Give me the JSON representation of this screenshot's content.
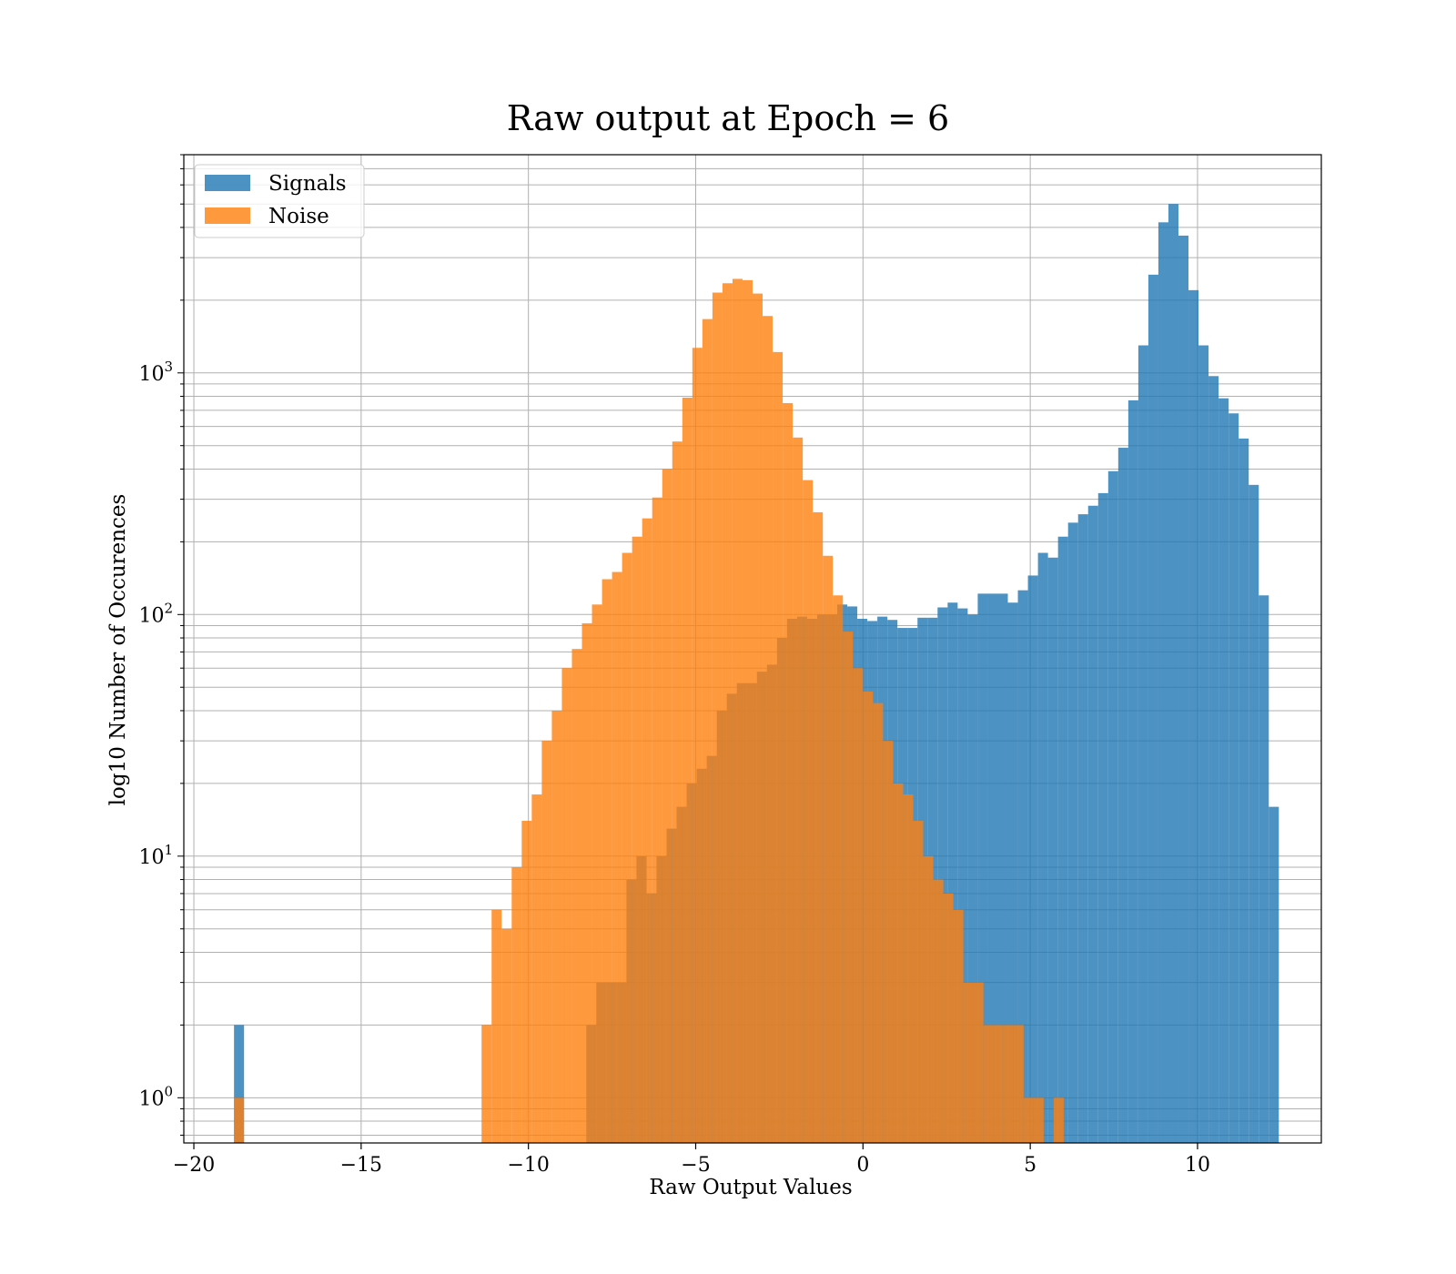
{
  "chart_data": {
    "type": "bar",
    "subtype": "overlaid-histogram",
    "title": "Raw output at Epoch = 6",
    "xlabel": "Raw Output Values",
    "ylabel": "log10 Number of Occurences",
    "xlim": [
      -20.3,
      13.7
    ],
    "ylim": [
      0.65,
      8000
    ],
    "yscale": "log",
    "grid": true,
    "legend_position": "top-left",
    "x_ticks": [
      {
        "value": -20,
        "label": "−20"
      },
      {
        "value": -15,
        "label": "−15"
      },
      {
        "value": -10,
        "label": "−10"
      },
      {
        "value": -5,
        "label": "−5"
      },
      {
        "value": 0,
        "label": "0"
      },
      {
        "value": 5,
        "label": "5"
      },
      {
        "value": 10,
        "label": "10"
      }
    ],
    "y_ticks": [
      {
        "value": 1,
        "base": "10",
        "exp": "0"
      },
      {
        "value": 10,
        "base": "10",
        "exp": "1"
      },
      {
        "value": 100,
        "base": "10",
        "exp": "2"
      },
      {
        "value": 1000,
        "base": "10",
        "exp": "3"
      }
    ],
    "series": [
      {
        "name": "Signals",
        "color": "#1f77b4",
        "bins": [
          [
            -18.8,
            -18.5,
            2
          ],
          [
            -8.27,
            -7.97,
            2
          ],
          [
            -7.97,
            -7.67,
            3
          ],
          [
            -7.67,
            -7.37,
            3
          ],
          [
            -7.37,
            -7.07,
            3
          ],
          [
            -7.07,
            -6.77,
            8
          ],
          [
            -6.77,
            -6.47,
            10
          ],
          [
            -6.47,
            -6.17,
            7
          ],
          [
            -6.17,
            -5.87,
            10
          ],
          [
            -5.87,
            -5.57,
            13
          ],
          [
            -5.57,
            -5.27,
            16
          ],
          [
            -5.27,
            -4.97,
            20
          ],
          [
            -4.97,
            -4.67,
            23
          ],
          [
            -4.67,
            -4.37,
            26
          ],
          [
            -4.37,
            -4.07,
            40
          ],
          [
            -4.07,
            -3.77,
            47
          ],
          [
            -3.77,
            -3.47,
            52
          ],
          [
            -3.47,
            -3.17,
            52
          ],
          [
            -3.17,
            -2.87,
            58
          ],
          [
            -2.87,
            -2.57,
            62
          ],
          [
            -2.57,
            -2.27,
            80
          ],
          [
            -2.27,
            -1.97,
            96
          ],
          [
            -1.97,
            -1.67,
            98
          ],
          [
            -1.67,
            -1.37,
            96
          ],
          [
            -1.37,
            -1.07,
            100
          ],
          [
            -1.07,
            -0.77,
            100
          ],
          [
            -0.77,
            -0.47,
            110
          ],
          [
            -0.47,
            -0.17,
            108
          ],
          [
            -0.17,
            0.13,
            96
          ],
          [
            0.13,
            0.43,
            94
          ],
          [
            0.43,
            0.73,
            98
          ],
          [
            0.73,
            1.03,
            95
          ],
          [
            1.03,
            1.33,
            88
          ],
          [
            1.33,
            1.63,
            88
          ],
          [
            1.63,
            1.93,
            97
          ],
          [
            1.93,
            2.23,
            97
          ],
          [
            2.23,
            2.53,
            107
          ],
          [
            2.53,
            2.83,
            112
          ],
          [
            2.83,
            3.13,
            106
          ],
          [
            3.13,
            3.43,
            100
          ],
          [
            3.43,
            3.73,
            122
          ],
          [
            3.73,
            4.03,
            122
          ],
          [
            4.03,
            4.33,
            122
          ],
          [
            4.33,
            4.63,
            112
          ],
          [
            4.63,
            4.93,
            126
          ],
          [
            4.93,
            5.23,
            145
          ],
          [
            5.23,
            5.53,
            180
          ],
          [
            5.53,
            5.83,
            172
          ],
          [
            5.83,
            6.13,
            210
          ],
          [
            6.13,
            6.43,
            240
          ],
          [
            6.43,
            6.73,
            260
          ],
          [
            6.73,
            7.03,
            282
          ],
          [
            7.03,
            7.33,
            318
          ],
          [
            7.33,
            7.63,
            392
          ],
          [
            7.63,
            7.93,
            490
          ],
          [
            7.93,
            8.23,
            770
          ],
          [
            8.23,
            8.53,
            1300
          ],
          [
            8.53,
            8.83,
            2550
          ],
          [
            8.83,
            9.13,
            4200
          ],
          [
            9.13,
            9.43,
            5000
          ],
          [
            9.43,
            9.73,
            3700
          ],
          [
            9.73,
            10.03,
            2200
          ],
          [
            10.03,
            10.33,
            1300
          ],
          [
            10.33,
            10.63,
            970
          ],
          [
            10.63,
            10.93,
            785
          ],
          [
            10.93,
            11.23,
            680
          ],
          [
            11.23,
            11.53,
            535
          ],
          [
            11.53,
            11.83,
            344
          ],
          [
            11.83,
            12.13,
            120
          ],
          [
            12.13,
            12.43,
            16
          ]
        ]
      },
      {
        "name": "Noise",
        "color": "#ff7f0e",
        "bins": [
          [
            -18.8,
            -18.5,
            1
          ],
          [
            -11.4,
            -11.1,
            2
          ],
          [
            -11.1,
            -10.8,
            6
          ],
          [
            -10.8,
            -10.5,
            5
          ],
          [
            -10.5,
            -10.2,
            9
          ],
          [
            -10.2,
            -9.9,
            14
          ],
          [
            -9.9,
            -9.6,
            18
          ],
          [
            -9.6,
            -9.3,
            30
          ],
          [
            -9.3,
            -9.0,
            40
          ],
          [
            -9.0,
            -8.7,
            60
          ],
          [
            -8.7,
            -8.4,
            72
          ],
          [
            -8.4,
            -8.1,
            92
          ],
          [
            -8.1,
            -7.8,
            110
          ],
          [
            -7.8,
            -7.5,
            140
          ],
          [
            -7.5,
            -7.2,
            150
          ],
          [
            -7.2,
            -6.9,
            180
          ],
          [
            -6.9,
            -6.6,
            210
          ],
          [
            -6.6,
            -6.3,
            250
          ],
          [
            -6.3,
            -6.0,
            305
          ],
          [
            -6.0,
            -5.7,
            400
          ],
          [
            -5.7,
            -5.4,
            520
          ],
          [
            -5.4,
            -5.1,
            790
          ],
          [
            -5.1,
            -4.8,
            1270
          ],
          [
            -4.8,
            -4.5,
            1670
          ],
          [
            -4.5,
            -4.2,
            2150
          ],
          [
            -4.2,
            -3.9,
            2350
          ],
          [
            -3.9,
            -3.6,
            2450
          ],
          [
            -3.6,
            -3.3,
            2420
          ],
          [
            -3.3,
            -3.0,
            2130
          ],
          [
            -3.0,
            -2.7,
            1720
          ],
          [
            -2.7,
            -2.4,
            1220
          ],
          [
            -2.4,
            -2.1,
            750
          ],
          [
            -2.1,
            -1.8,
            540
          ],
          [
            -1.8,
            -1.5,
            360
          ],
          [
            -1.5,
            -1.2,
            265
          ],
          [
            -1.2,
            -0.9,
            175
          ],
          [
            -0.9,
            -0.6,
            120
          ],
          [
            -0.6,
            -0.3,
            85
          ],
          [
            -0.3,
            0.0,
            60
          ],
          [
            0.0,
            0.3,
            48
          ],
          [
            0.3,
            0.6,
            43
          ],
          [
            0.6,
            0.9,
            30
          ],
          [
            0.9,
            1.2,
            20
          ],
          [
            1.2,
            1.5,
            18
          ],
          [
            1.5,
            1.8,
            14
          ],
          [
            1.8,
            2.1,
            10
          ],
          [
            2.1,
            2.4,
            8
          ],
          [
            2.4,
            2.7,
            7
          ],
          [
            2.7,
            3.0,
            6
          ],
          [
            3.0,
            3.3,
            3
          ],
          [
            3.3,
            3.6,
            3
          ],
          [
            3.6,
            3.9,
            2
          ],
          [
            3.9,
            4.2,
            2
          ],
          [
            4.2,
            4.5,
            2
          ],
          [
            4.5,
            4.8,
            2
          ],
          [
            4.8,
            5.1,
            1
          ],
          [
            5.1,
            5.4,
            1
          ],
          [
            5.7,
            6.0,
            1
          ]
        ]
      }
    ]
  }
}
